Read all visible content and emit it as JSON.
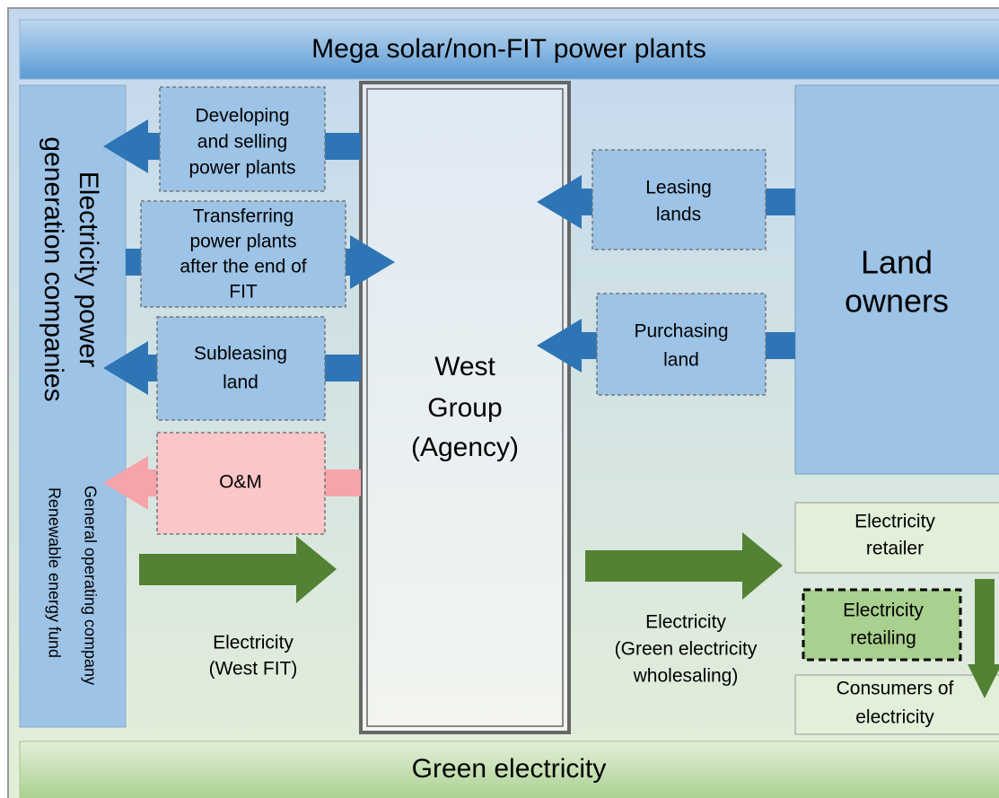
{
  "header": {
    "title": "Mega solar/non-FIT power plants"
  },
  "footer": {
    "title": "Green electricity"
  },
  "generation_companies": {
    "title_lines": [
      "Electricity power",
      "generation companies"
    ],
    "members": [
      "General operating company",
      "Renewable energy fund"
    ]
  },
  "agency": {
    "lines": [
      "West",
      "Group",
      "(Agency)"
    ]
  },
  "land_owners": {
    "lines": [
      "Land",
      "owners"
    ]
  },
  "services": [
    {
      "lines": [
        "Developing",
        "and selling",
        "power plants"
      ]
    },
    {
      "lines": [
        "Transferring",
        "power plants",
        "after the end of",
        "FIT"
      ]
    },
    {
      "lines": [
        "Subleasing",
        "land"
      ]
    },
    {
      "lines": [
        "O&M"
      ]
    }
  ],
  "land_deals": [
    {
      "lines": [
        "Leasing",
        "lands"
      ]
    },
    {
      "lines": [
        "Purchasing",
        "land"
      ]
    }
  ],
  "flows": [
    {
      "lines": [
        "Electricity",
        "(West FIT)"
      ]
    },
    {
      "lines": [
        "Electricity",
        "(Green electricity",
        "wholesaling)"
      ]
    }
  ],
  "retail": [
    {
      "lines": [
        "Electricity",
        "retailer"
      ]
    },
    {
      "lines": [
        "Electricity",
        "retailing"
      ]
    },
    {
      "lines": [
        "Consumers of",
        "electricity"
      ]
    }
  ]
}
